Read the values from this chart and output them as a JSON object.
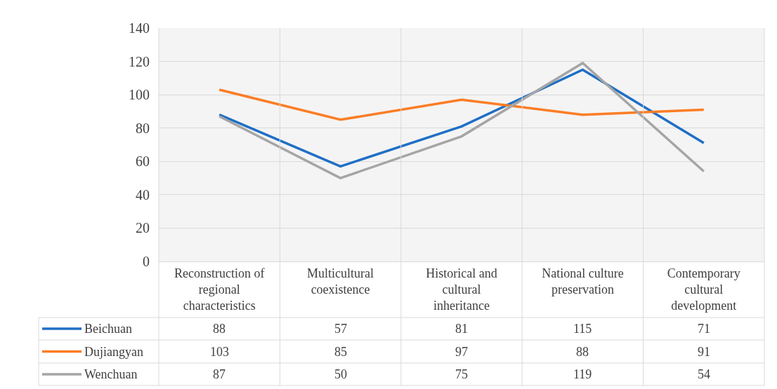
{
  "chart_data": {
    "type": "line",
    "categories": [
      "Reconstruction of regional characteristics",
      "Multicultural coexistence",
      "Historical and cultural inheritance",
      "National culture preservation",
      "Contemporary cultural development"
    ],
    "series": [
      {
        "name": "Beichuan",
        "color": "#1f6fc6",
        "values": [
          88,
          57,
          81,
          115,
          71
        ]
      },
      {
        "name": "Dujiangyan",
        "color": "#fb7d25",
        "values": [
          103,
          85,
          97,
          88,
          91
        ]
      },
      {
        "name": "Wenchuan",
        "color": "#a5a5a5",
        "values": [
          87,
          50,
          75,
          119,
          54
        ]
      }
    ],
    "ylim": [
      0,
      140
    ],
    "yticks": [
      0,
      20,
      40,
      60,
      80,
      100,
      120,
      140
    ],
    "grid": true,
    "legend": "bottom left",
    "data_labels": true,
    "marker": "none",
    "line_style": "solid"
  }
}
